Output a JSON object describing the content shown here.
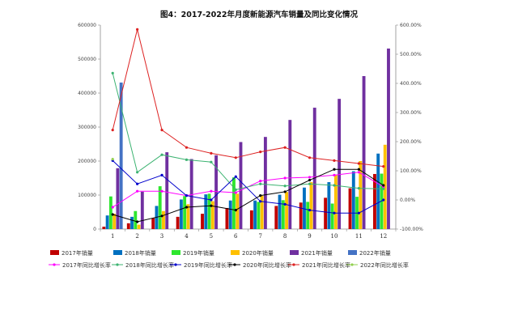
{
  "chart_data": {
    "type": "bar",
    "title": "图4：2017-2022年月度新能源汽车销量及同比变化情况",
    "categories": [
      "1",
      "2",
      "3",
      "4",
      "5",
      "6",
      "7",
      "8",
      "9",
      "10",
      "11",
      "12"
    ],
    "ylim": [
      0,
      600000
    ],
    "y2lim": [
      -1.0,
      6.0
    ],
    "left_ticks": [
      "0",
      "100000",
      "200000",
      "300000",
      "400000",
      "500000",
      "600000"
    ],
    "right_ticks": [
      "-100.00%",
      "0.00%",
      "100.00%",
      "200.00%",
      "300.00%",
      "400.00%",
      "500.00%",
      "600.00%"
    ],
    "grid": false,
    "legend_position": "bottom",
    "bar_series": [
      {
        "name": "2017年销量",
        "color": "#c00000",
        "values": [
          7000,
          17000,
          32000,
          36000,
          45000,
          62000,
          55000,
          68000,
          78000,
          92000,
          120000,
          162000
        ]
      },
      {
        "name": "2018年销量",
        "color": "#0070c0",
        "values": [
          40000,
          36000,
          68000,
          87000,
          102000,
          84000,
          84000,
          101000,
          122000,
          138000,
          170000,
          222000
        ]
      },
      {
        "name": "2019年销量",
        "color": "#2ee62e",
        "values": [
          96000,
          53000,
          126000,
          97000,
          104000,
          152000,
          80000,
          85000,
          80000,
          75000,
          95000,
          163000
        ]
      },
      {
        "name": "2020年销量",
        "color": "#ffc000",
        "values": [
          45000,
          13000,
          53000,
          73000,
          82000,
          104000,
          98000,
          109000,
          138000,
          160000,
          200000,
          248000
        ]
      },
      {
        "name": "2021年销量",
        "color": "#7030a0",
        "values": [
          179000,
          110000,
          226000,
          206000,
          217000,
          256000,
          271000,
          321000,
          357000,
          383000,
          450000,
          531000
        ]
      },
      {
        "name": "2022年销量",
        "color": "#4472c4",
        "values": [
          431000,
          null,
          null,
          null,
          null,
          null,
          null,
          null,
          null,
          null,
          null,
          null
        ]
      }
    ],
    "line_series": [
      {
        "name": "2017年同比增长率",
        "color": "#ff00ff",
        "values": [
          -0.25,
          0.3,
          0.3,
          0.15,
          0.3,
          0.25,
          0.65,
          0.75,
          0.78,
          0.85,
          0.95,
          0.45
        ]
      },
      {
        "name": "2018年同比增长率",
        "color": "#3cb371",
        "values": [
          4.35,
          0.95,
          1.55,
          1.38,
          1.3,
          0.35,
          0.55,
          0.48,
          0.55,
          0.5,
          0.4,
          0.38
        ]
      },
      {
        "name": "2019年同比增长率",
        "color": "#0000cc",
        "values": [
          1.35,
          0.55,
          0.85,
          0.15,
          0.0,
          0.8,
          -0.05,
          -0.15,
          -0.35,
          -0.45,
          -0.45,
          0.0
        ]
      },
      {
        "name": "2020年同比增长率",
        "color": "#000000",
        "values": [
          -0.5,
          -0.75,
          -0.55,
          -0.25,
          -0.2,
          -0.35,
          0.15,
          0.28,
          0.68,
          1.05,
          1.05,
          0.5
        ]
      },
      {
        "name": "2021年同比增长率",
        "color": "#dd2222",
        "values": [
          2.4,
          5.85,
          2.4,
          1.8,
          1.6,
          1.45,
          1.65,
          1.8,
          1.45,
          1.35,
          1.25,
          1.15
        ]
      },
      {
        "name": "2022年同比增长率",
        "color": "#92d050",
        "values": [
          1.4,
          null,
          null,
          null,
          null,
          null,
          null,
          null,
          null,
          null,
          null,
          null
        ]
      }
    ]
  }
}
